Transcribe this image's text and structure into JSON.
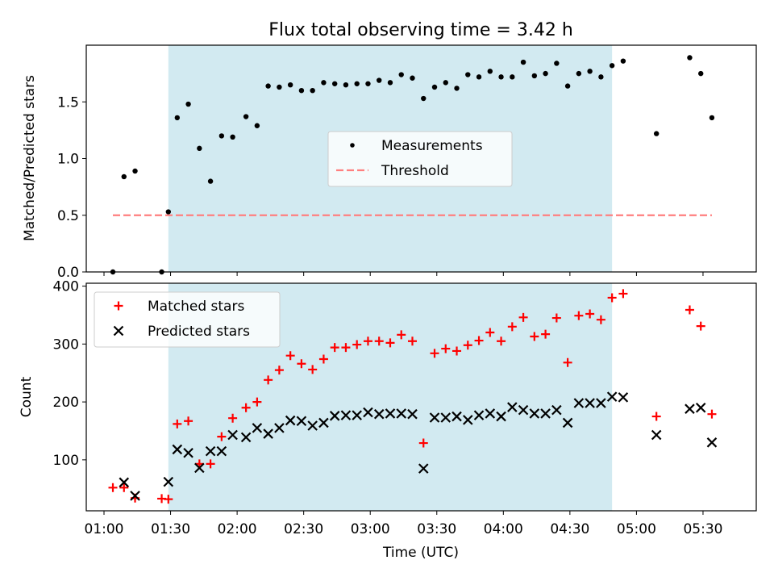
{
  "chart_data": [
    {
      "type": "scatter",
      "title": "Flux total observing time = 3.42 h",
      "xlabel": "",
      "ylabel": "Matched/Predicted stars",
      "ylim": [
        0,
        2.0
      ],
      "yticks": [
        "0.0",
        "0.5",
        "1.0",
        "1.5"
      ],
      "xlim": [
        "00:52",
        "05:54"
      ],
      "shaded_interval": [
        "01:29",
        "04:49"
      ],
      "shade_color": "#add8e6",
      "legend": {
        "position": "center",
        "entries": [
          {
            "label": "Measurements",
            "marker": "dot",
            "color": "#000000"
          },
          {
            "label": "Threshold",
            "marker": "dashed-line",
            "color": "#ff7f7f"
          }
        ]
      },
      "series": [
        {
          "name": "Measurements",
          "color": "#000000",
          "points": [
            [
              "01:04",
              0.0
            ],
            [
              "01:09",
              0.84
            ],
            [
              "01:14",
              0.89
            ],
            [
              "01:26",
              0.0
            ],
            [
              "01:29",
              0.53
            ],
            [
              "01:33",
              1.36
            ],
            [
              "01:38",
              1.48
            ],
            [
              "01:43",
              1.09
            ],
            [
              "01:48",
              0.8
            ],
            [
              "01:53",
              1.2
            ],
            [
              "01:58",
              1.19
            ],
            [
              "02:04",
              1.37
            ],
            [
              "02:09",
              1.29
            ],
            [
              "02:14",
              1.64
            ],
            [
              "02:19",
              1.63
            ],
            [
              "02:24",
              1.65
            ],
            [
              "02:29",
              1.6
            ],
            [
              "02:34",
              1.6
            ],
            [
              "02:39",
              1.67
            ],
            [
              "02:44",
              1.66
            ],
            [
              "02:49",
              1.65
            ],
            [
              "02:54",
              1.66
            ],
            [
              "02:59",
              1.66
            ],
            [
              "03:04",
              1.69
            ],
            [
              "03:09",
              1.67
            ],
            [
              "03:14",
              1.74
            ],
            [
              "03:19",
              1.71
            ],
            [
              "03:24",
              1.53
            ],
            [
              "03:29",
              1.63
            ],
            [
              "03:34",
              1.67
            ],
            [
              "03:39",
              1.62
            ],
            [
              "03:44",
              1.74
            ],
            [
              "03:49",
              1.72
            ],
            [
              "03:54",
              1.77
            ],
            [
              "03:59",
              1.72
            ],
            [
              "04:04",
              1.72
            ],
            [
              "04:09",
              1.85
            ],
            [
              "04:14",
              1.73
            ],
            [
              "04:19",
              1.75
            ],
            [
              "04:24",
              1.84
            ],
            [
              "04:29",
              1.64
            ],
            [
              "04:34",
              1.75
            ],
            [
              "04:39",
              1.77
            ],
            [
              "04:44",
              1.72
            ],
            [
              "04:49",
              1.82
            ],
            [
              "04:54",
              1.86
            ],
            [
              "05:09",
              1.22
            ],
            [
              "05:24",
              1.89
            ],
            [
              "05:29",
              1.75
            ],
            [
              "05:34",
              1.36
            ]
          ]
        },
        {
          "name": "Threshold",
          "color": "#ff7f7f",
          "style": "dashed",
          "x": [
            "01:04",
            "05:34"
          ],
          "y": [
            0.5,
            0.5
          ]
        }
      ]
    },
    {
      "type": "scatter",
      "title": "",
      "xlabel": "Time (UTC)",
      "ylabel": "Count",
      "ylim": [
        12,
        405
      ],
      "yticks": [
        "100",
        "200",
        "300",
        "400"
      ],
      "xlim": [
        "00:52",
        "05:54"
      ],
      "xticks": [
        "01:00",
        "01:30",
        "02:00",
        "02:30",
        "03:00",
        "03:30",
        "04:00",
        "04:30",
        "05:00",
        "05:30"
      ],
      "shaded_interval": [
        "01:29",
        "04:49"
      ],
      "shade_color": "#add8e6",
      "legend": {
        "position": "top-left",
        "entries": [
          {
            "label": "Matched stars",
            "marker": "plus",
            "color": "#ff0000"
          },
          {
            "label": "Predicted stars",
            "marker": "x",
            "color": "#000000"
          }
        ]
      },
      "series": [
        {
          "name": "Matched stars",
          "color": "#ff0000",
          "points": [
            [
              "01:04",
              52
            ],
            [
              "01:09",
              52
            ],
            [
              "01:14",
              34
            ],
            [
              "01:26",
              33
            ],
            [
              "01:29",
              32
            ],
            [
              "01:33",
              162
            ],
            [
              "01:38",
              167
            ],
            [
              "01:43",
              93
            ],
            [
              "01:48",
              93
            ],
            [
              "01:53",
              140
            ],
            [
              "01:58",
              172
            ],
            [
              "02:04",
              190
            ],
            [
              "02:09",
              200
            ],
            [
              "02:14",
              238
            ],
            [
              "02:19",
              255
            ],
            [
              "02:24",
              280
            ],
            [
              "02:29",
              266
            ],
            [
              "02:34",
              256
            ],
            [
              "02:39",
              274
            ],
            [
              "02:44",
              294
            ],
            [
              "02:49",
              294
            ],
            [
              "02:54",
              299
            ],
            [
              "02:59",
              305
            ],
            [
              "03:04",
              305
            ],
            [
              "03:09",
              302
            ],
            [
              "03:14",
              316
            ],
            [
              "03:19",
              305
            ],
            [
              "03:24",
              129
            ],
            [
              "03:29",
              284
            ],
            [
              "03:34",
              292
            ],
            [
              "03:39",
              288
            ],
            [
              "03:44",
              298
            ],
            [
              "03:49",
              306
            ],
            [
              "03:54",
              320
            ],
            [
              "03:59",
              305
            ],
            [
              "04:04",
              330
            ],
            [
              "04:09",
              346
            ],
            [
              "04:14",
              313
            ],
            [
              "04:19",
              317
            ],
            [
              "04:24",
              345
            ],
            [
              "04:29",
              268
            ],
            [
              "04:34",
              349
            ],
            [
              "04:39",
              352
            ],
            [
              "04:44",
              342
            ],
            [
              "04:49",
              380
            ],
            [
              "04:54",
              387
            ],
            [
              "05:09",
              175
            ],
            [
              "05:24",
              359
            ],
            [
              "05:29",
              331
            ],
            [
              "05:34",
              179
            ]
          ]
        },
        {
          "name": "Predicted stars",
          "color": "#000000",
          "points": [
            [
              "01:09",
              61
            ],
            [
              "01:14",
              38
            ],
            [
              "01:29",
              62
            ],
            [
              "01:33",
              118
            ],
            [
              "01:38",
              112
            ],
            [
              "01:43",
              86
            ],
            [
              "01:48",
              115
            ],
            [
              "01:53",
              115
            ],
            [
              "01:58",
              143
            ],
            [
              "02:04",
              139
            ],
            [
              "02:09",
              155
            ],
            [
              "02:14",
              145
            ],
            [
              "02:19",
              155
            ],
            [
              "02:24",
              168
            ],
            [
              "02:29",
              167
            ],
            [
              "02:34",
              159
            ],
            [
              "02:39",
              164
            ],
            [
              "02:44",
              176
            ],
            [
              "02:49",
              177
            ],
            [
              "02:54",
              177
            ],
            [
              "02:59",
              182
            ],
            [
              "03:04",
              179
            ],
            [
              "03:09",
              180
            ],
            [
              "03:14",
              180
            ],
            [
              "03:19",
              179
            ],
            [
              "03:24",
              85
            ],
            [
              "03:29",
              173
            ],
            [
              "03:34",
              173
            ],
            [
              "03:39",
              175
            ],
            [
              "03:44",
              169
            ],
            [
              "03:49",
              177
            ],
            [
              "03:54",
              180
            ],
            [
              "03:59",
              175
            ],
            [
              "04:04",
              191
            ],
            [
              "04:09",
              186
            ],
            [
              "04:14",
              180
            ],
            [
              "04:19",
              180
            ],
            [
              "04:24",
              186
            ],
            [
              "04:29",
              164
            ],
            [
              "04:34",
              198
            ],
            [
              "04:39",
              198
            ],
            [
              "04:44",
              198
            ],
            [
              "04:49",
              209
            ],
            [
              "04:54",
              208
            ],
            [
              "05:09",
              143
            ],
            [
              "05:24",
              188
            ],
            [
              "05:29",
              190
            ],
            [
              "05:34",
              130
            ]
          ]
        }
      ]
    }
  ]
}
